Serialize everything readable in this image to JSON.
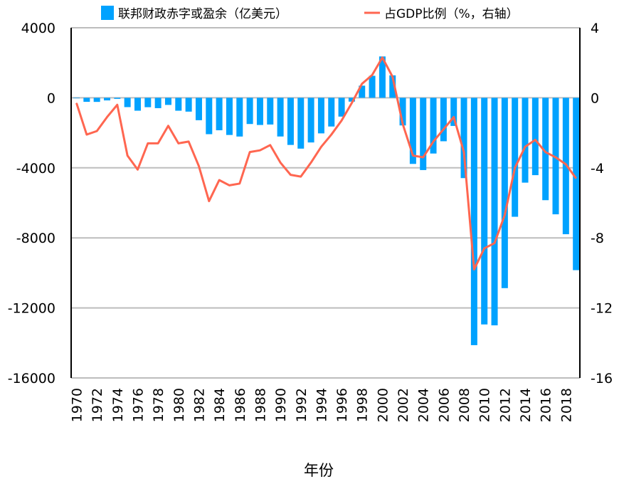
{
  "chart_data": {
    "type": "bar+line",
    "xlabel": "年份",
    "ylabel": "",
    "ylim": [
      -16000,
      4000
    ],
    "y2lim": [
      -16,
      4
    ],
    "yticks": [
      4000,
      0,
      -4000,
      -8000,
      -12000,
      -16000
    ],
    "y2ticks": [
      4,
      0,
      -4,
      -8,
      -12,
      -16
    ],
    "xtick_labels": [
      "1970",
      "1972",
      "1974",
      "1976",
      "1978",
      "1980",
      "1982",
      "1984",
      "1986",
      "1988",
      "1990",
      "1992",
      "1994",
      "1996",
      "1998",
      "2000",
      "2002",
      "2004",
      "2006",
      "2008",
      "2010",
      "2012",
      "2014",
      "2016",
      "2018"
    ],
    "grid": true,
    "legend_position": "top",
    "colors": {
      "bar": "#00a2ff",
      "line": "#ff6650"
    },
    "categories": [
      1970,
      1971,
      1972,
      1973,
      1974,
      1975,
      1976,
      1977,
      1978,
      1979,
      1980,
      1981,
      1982,
      1983,
      1984,
      1985,
      1986,
      1987,
      1988,
      1989,
      1990,
      1991,
      1992,
      1993,
      1994,
      1995,
      1996,
      1997,
      1998,
      1999,
      2000,
      2001,
      2002,
      2003,
      2004,
      2005,
      2006,
      2007,
      2008,
      2009,
      2010,
      2011,
      2012,
      2013,
      2014,
      2015,
      2016,
      2017,
      2018,
      2019
    ],
    "series": [
      {
        "name": "联邦财政赤字或盈余（亿美元）",
        "type": "bar",
        "axis": "left",
        "values": [
          -28,
          -230,
          -234,
          -149,
          -61,
          -532,
          -737,
          -537,
          -592,
          -407,
          -738,
          -790,
          -1280,
          -2078,
          -1854,
          -2123,
          -2212,
          -1497,
          -1552,
          -1526,
          -2210,
          -2692,
          -2903,
          -2551,
          -2032,
          -1640,
          -1074,
          -219,
          693,
          1256,
          2362,
          1282,
          -1578,
          -3776,
          -4127,
          -3183,
          -2482,
          -1607,
          -4586,
          -14127,
          -12944,
          -12996,
          -10870,
          -6795,
          -4846,
          -4418,
          -5847,
          -6654,
          -7791,
          -9844
        ]
      },
      {
        "name": "占GDP比例（%，右轴）",
        "type": "line",
        "axis": "right",
        "values": [
          -0.3,
          -2.1,
          -1.9,
          -1.1,
          -0.4,
          -3.3,
          -4.1,
          -2.6,
          -2.6,
          -1.6,
          -2.6,
          -2.5,
          -3.9,
          -5.9,
          -4.7,
          -5.0,
          -4.9,
          -3.1,
          -3.0,
          -2.7,
          -3.7,
          -4.4,
          -4.5,
          -3.7,
          -2.8,
          -2.1,
          -1.3,
          -0.3,
          0.8,
          1.3,
          2.3,
          1.2,
          -1.5,
          -3.3,
          -3.4,
          -2.5,
          -1.8,
          -1.1,
          -3.1,
          -9.8,
          -8.6,
          -8.3,
          -6.7,
          -4.0,
          -2.8,
          -2.4,
          -3.1,
          -3.4,
          -3.8,
          -4.6
        ]
      }
    ]
  }
}
